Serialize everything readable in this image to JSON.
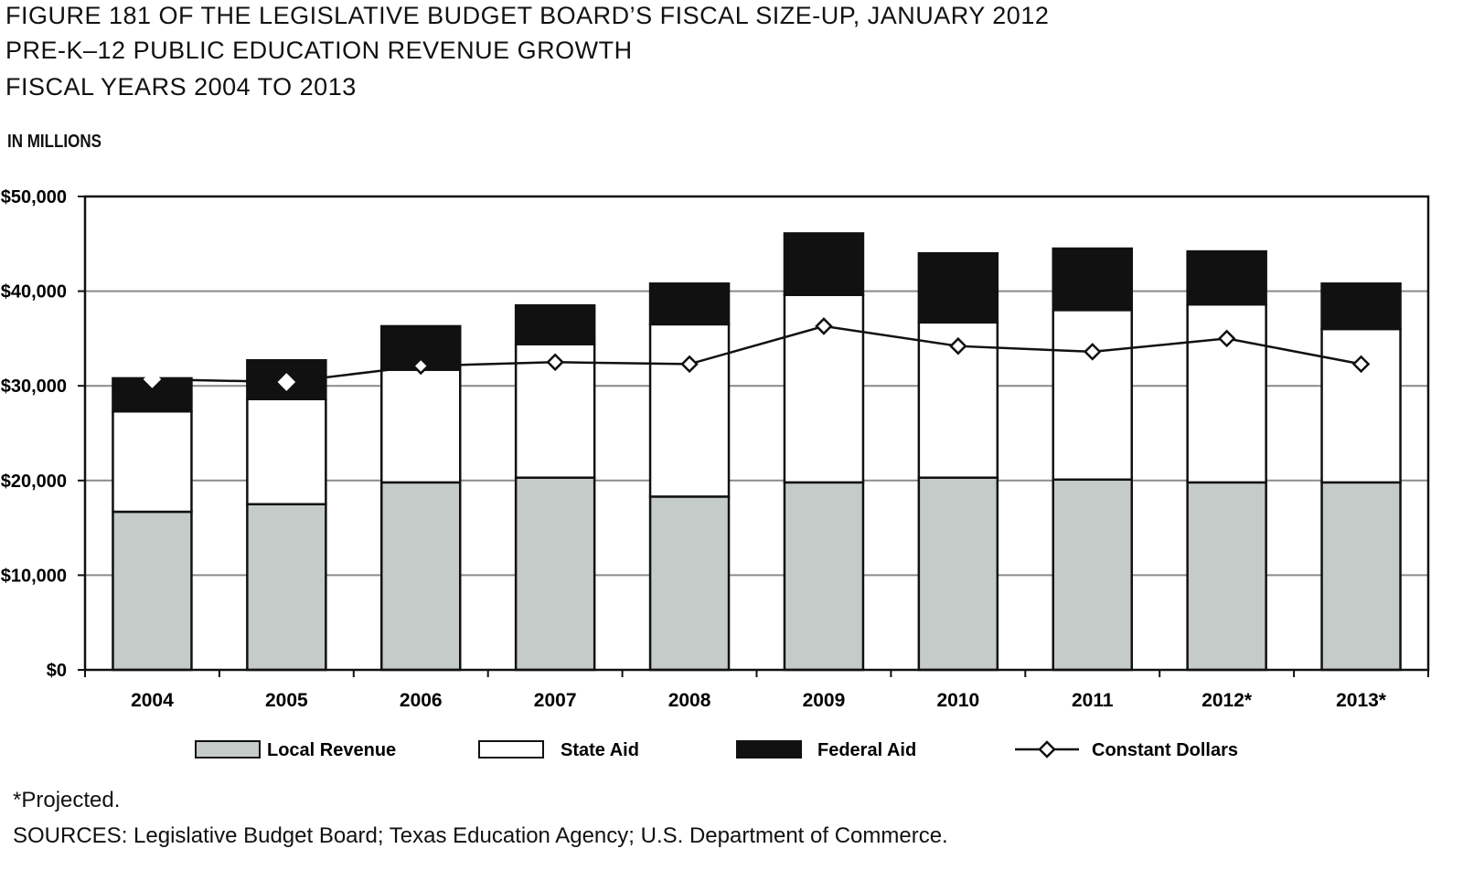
{
  "titles": {
    "line1": "FIGURE 181 OF THE LEGISLATIVE BUDGET BOARD’S FISCAL SIZE-UP, JANUARY 2012",
    "line2": "PRE-K–12 PUBLIC EDUCATION REVENUE GROWTH",
    "line3": "FISCAL YEARS 2004 TO 2013"
  },
  "units_label": "IN MILLIONS",
  "footnote": "*Projected.",
  "sources": "SOURCES: Legislative Budget Board; Texas Education Agency; U.S. Department of Commerce.",
  "chart_data": {
    "type": "bar",
    "stacked": true,
    "categories": [
      "2004",
      "2005",
      "2006",
      "2007",
      "2008",
      "2009",
      "2010",
      "2011",
      "2012*",
      "2013*"
    ],
    "series": [
      {
        "name": "Local Revenue",
        "values": [
          16700,
          17500,
          19800,
          20300,
          18300,
          19800,
          20300,
          20100,
          19800,
          19800
        ],
        "color": "#c4cbc9"
      },
      {
        "name": "State Aid",
        "values": [
          10600,
          11100,
          11900,
          14100,
          18200,
          19800,
          16400,
          17900,
          18800,
          16200
        ],
        "color": "#ffffff"
      },
      {
        "name": "Federal Aid",
        "values": [
          3500,
          4100,
          4600,
          4100,
          4300,
          6500,
          7300,
          6500,
          5600,
          4800
        ],
        "color": "#111111"
      }
    ],
    "line_series": {
      "name": "Constant Dollars",
      "values": [
        30700,
        30400,
        32100,
        32500,
        32300,
        36300,
        34200,
        33600,
        35000,
        32300
      ]
    },
    "yticks": [
      "$0",
      "$10,000",
      "$20,000",
      "$30,000",
      "$40,000",
      "$50,000"
    ],
    "ylim": [
      0,
      50000
    ],
    "grid": true,
    "legend_position": "bottom"
  }
}
